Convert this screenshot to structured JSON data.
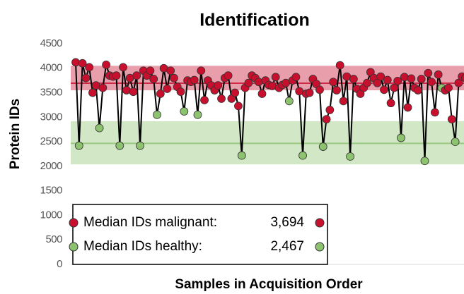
{
  "chart_data": {
    "type": "line",
    "title": "Identification",
    "y_label": "Protein IDs",
    "x_label": "Samples in Acquisition Order",
    "ylim": [
      0,
      4500
    ],
    "yticks": [
      0,
      500,
      1000,
      1500,
      2000,
      2500,
      3000,
      3500,
      4000,
      4500
    ],
    "line_color": "#000000",
    "reference_bands": [
      {
        "name": "Median IDs malignant:",
        "median": 3694,
        "median_label": "3,694",
        "from": 3550,
        "to": 4050,
        "color": "#c8102e"
      },
      {
        "name": "Median IDs healthy:",
        "median": 2467,
        "median_label": "2,467",
        "from": 2040,
        "to": 2920,
        "color": "#8dc26f"
      }
    ],
    "values": [
      4120,
      2420,
      4100,
      3800,
      4020,
      3500,
      3650,
      2780,
      3600,
      4070,
      3850,
      3830,
      3850,
      2420,
      4020,
      3550,
      3800,
      3520,
      3850,
      2420,
      3950,
      3850,
      3950,
      3780,
      3050,
      3480,
      4000,
      3580,
      3950,
      3800,
      3620,
      3520,
      3120,
      3750,
      3720,
      3760,
      3050,
      3950,
      3350,
      3750,
      3650,
      3550,
      3650,
      3380,
      3800,
      3850,
      3380,
      3500,
      3230,
      2220,
      3600,
      3700,
      3850,
      3800,
      3720,
      3480,
      3750,
      3660,
      3640,
      3820,
      3600,
      3660,
      3700,
      3330,
      3750,
      3820,
      3530,
      2220,
      3480,
      3500,
      3780,
      3680,
      3560,
      2400,
      2960,
      3150,
      3720,
      3550,
      4060,
      3330,
      3830,
      2200,
      3780,
      3580,
      3480,
      3600,
      3700,
      3920,
      3800,
      3700,
      3830,
      3560,
      3760,
      3290,
      3600,
      3740,
      2580,
      3820,
      3200,
      3790,
      3600,
      3550,
      3780,
      2110,
      3900,
      3720,
      3100,
      3870,
      3600,
      3550,
      3600,
      2960,
      2500,
      3700,
      3830,
      3800
    ],
    "point_colors": [
      "#c8102e",
      "#8dc26f",
      "#c8102e",
      "#c8102e",
      "#c8102e",
      "#c8102e",
      "#c8102e",
      "#8dc26f",
      "#c8102e",
      "#c8102e",
      "#c8102e",
      "#c8102e",
      "#c8102e",
      "#8dc26f",
      "#c8102e",
      "#c8102e",
      "#c8102e",
      "#c8102e",
      "#c8102e",
      "#8dc26f",
      "#c8102e",
      "#c8102e",
      "#c8102e",
      "#c8102e",
      "#8dc26f",
      "#c8102e",
      "#c8102e",
      "#c8102e",
      "#c8102e",
      "#c8102e",
      "#c8102e",
      "#c8102e",
      "#8dc26f",
      "#c8102e",
      "#c8102e",
      "#c8102e",
      "#8dc26f",
      "#c8102e",
      "#c8102e",
      "#c8102e",
      "#c8102e",
      "#c8102e",
      "#c8102e",
      "#c8102e",
      "#c8102e",
      "#c8102e",
      "#c8102e",
      "#c8102e",
      "#c8102e",
      "#8dc26f",
      "#c8102e",
      "#c8102e",
      "#c8102e",
      "#c8102e",
      "#c8102e",
      "#c8102e",
      "#c8102e",
      "#c8102e",
      "#c8102e",
      "#c8102e",
      "#c8102e",
      "#c8102e",
      "#c8102e",
      "#8dc26f",
      "#c8102e",
      "#c8102e",
      "#c8102e",
      "#8dc26f",
      "#c8102e",
      "#c8102e",
      "#c8102e",
      "#c8102e",
      "#c8102e",
      "#8dc26f",
      "#c8102e",
      "#c8102e",
      "#c8102e",
      "#c8102e",
      "#c8102e",
      "#c8102e",
      "#c8102e",
      "#8dc26f",
      "#c8102e",
      "#c8102e",
      "#c8102e",
      "#c8102e",
      "#c8102e",
      "#c8102e",
      "#c8102e",
      "#c8102e",
      "#c8102e",
      "#c8102e",
      "#c8102e",
      "#c8102e",
      "#c8102e",
      "#c8102e",
      "#8dc26f",
      "#c8102e",
      "#c8102e",
      "#c8102e",
      "#c8102e",
      "#c8102e",
      "#c8102e",
      "#8dc26f",
      "#c8102e",
      "#c8102e",
      "#c8102e",
      "#c8102e",
      "#8dc26f",
      "#c8102e",
      "#c8102e",
      "#c8102e",
      "#8dc26f",
      "#c8102e",
      "#c8102e",
      "#c8102e"
    ]
  }
}
